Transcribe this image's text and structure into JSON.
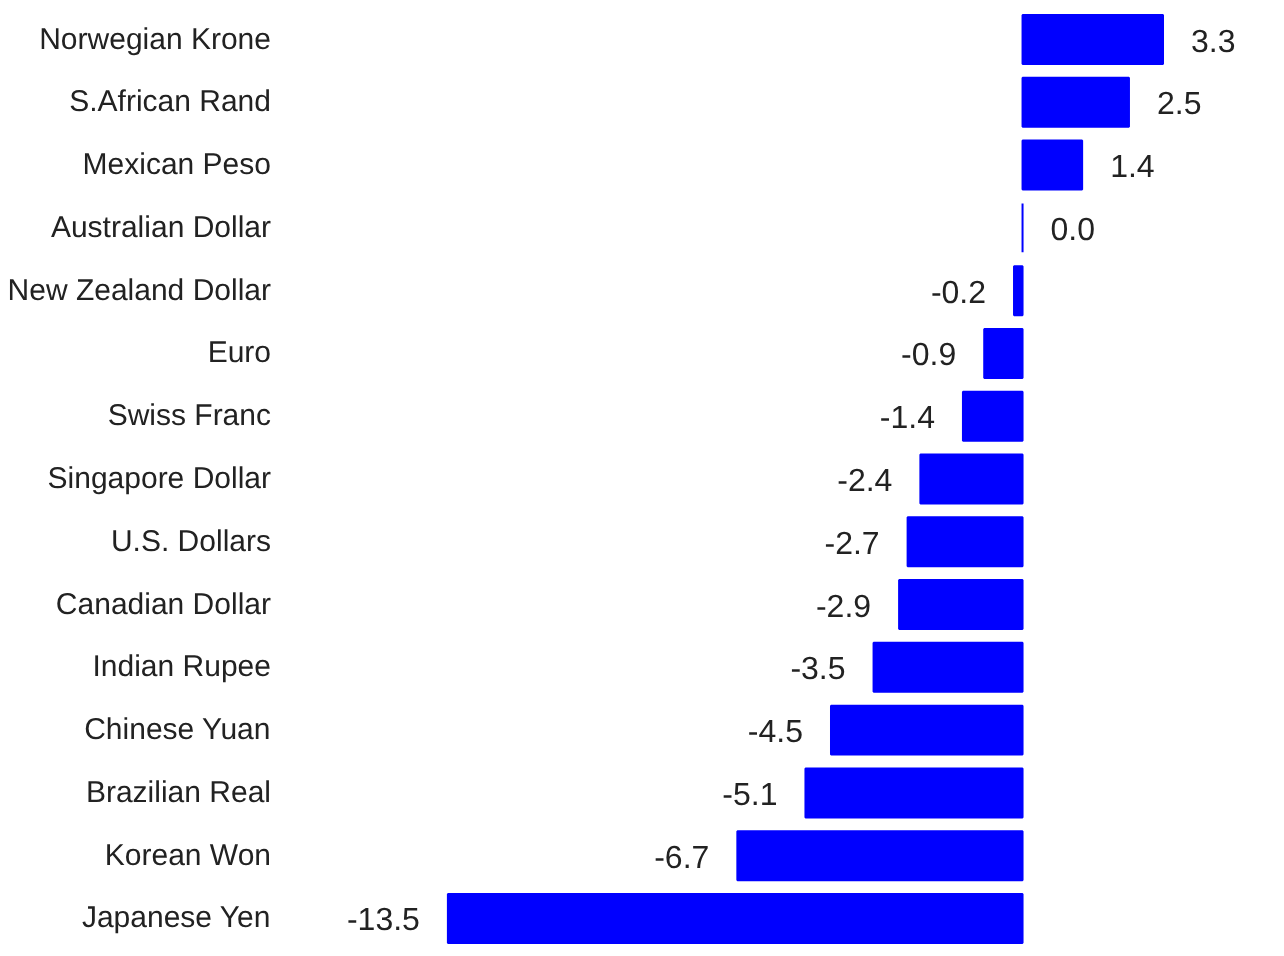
{
  "chart_data": {
    "type": "bar",
    "orientation": "horizontal",
    "grid": false,
    "color": "#0000ff",
    "categories": [
      "Norwegian Krone",
      "S.African Rand",
      "Mexican Peso",
      "Australian Dollar",
      "New Zealand Dollar",
      "Euro",
      "Swiss Franc",
      "Singapore Dollar",
      "U.S. Dollars",
      "Canadian Dollar",
      "Indian Rupee",
      "Chinese Yuan",
      "Brazilian Real",
      "Korean Won",
      "Japanese Yen"
    ],
    "values": [
      3.3,
      2.5,
      1.4,
      0.0,
      -0.2,
      -0.9,
      -1.4,
      -2.4,
      -2.7,
      -2.9,
      -3.5,
      -4.5,
      -5.1,
      -6.7,
      -13.5
    ],
    "value_labels": [
      "3.3",
      "2.5",
      "1.4",
      "0.0",
      "-0.2",
      "-0.9",
      "-1.4",
      "-2.4",
      "-2.7",
      "-2.9",
      "-3.5",
      "-4.5",
      "-5.1",
      "-6.7",
      "-13.5"
    ]
  }
}
